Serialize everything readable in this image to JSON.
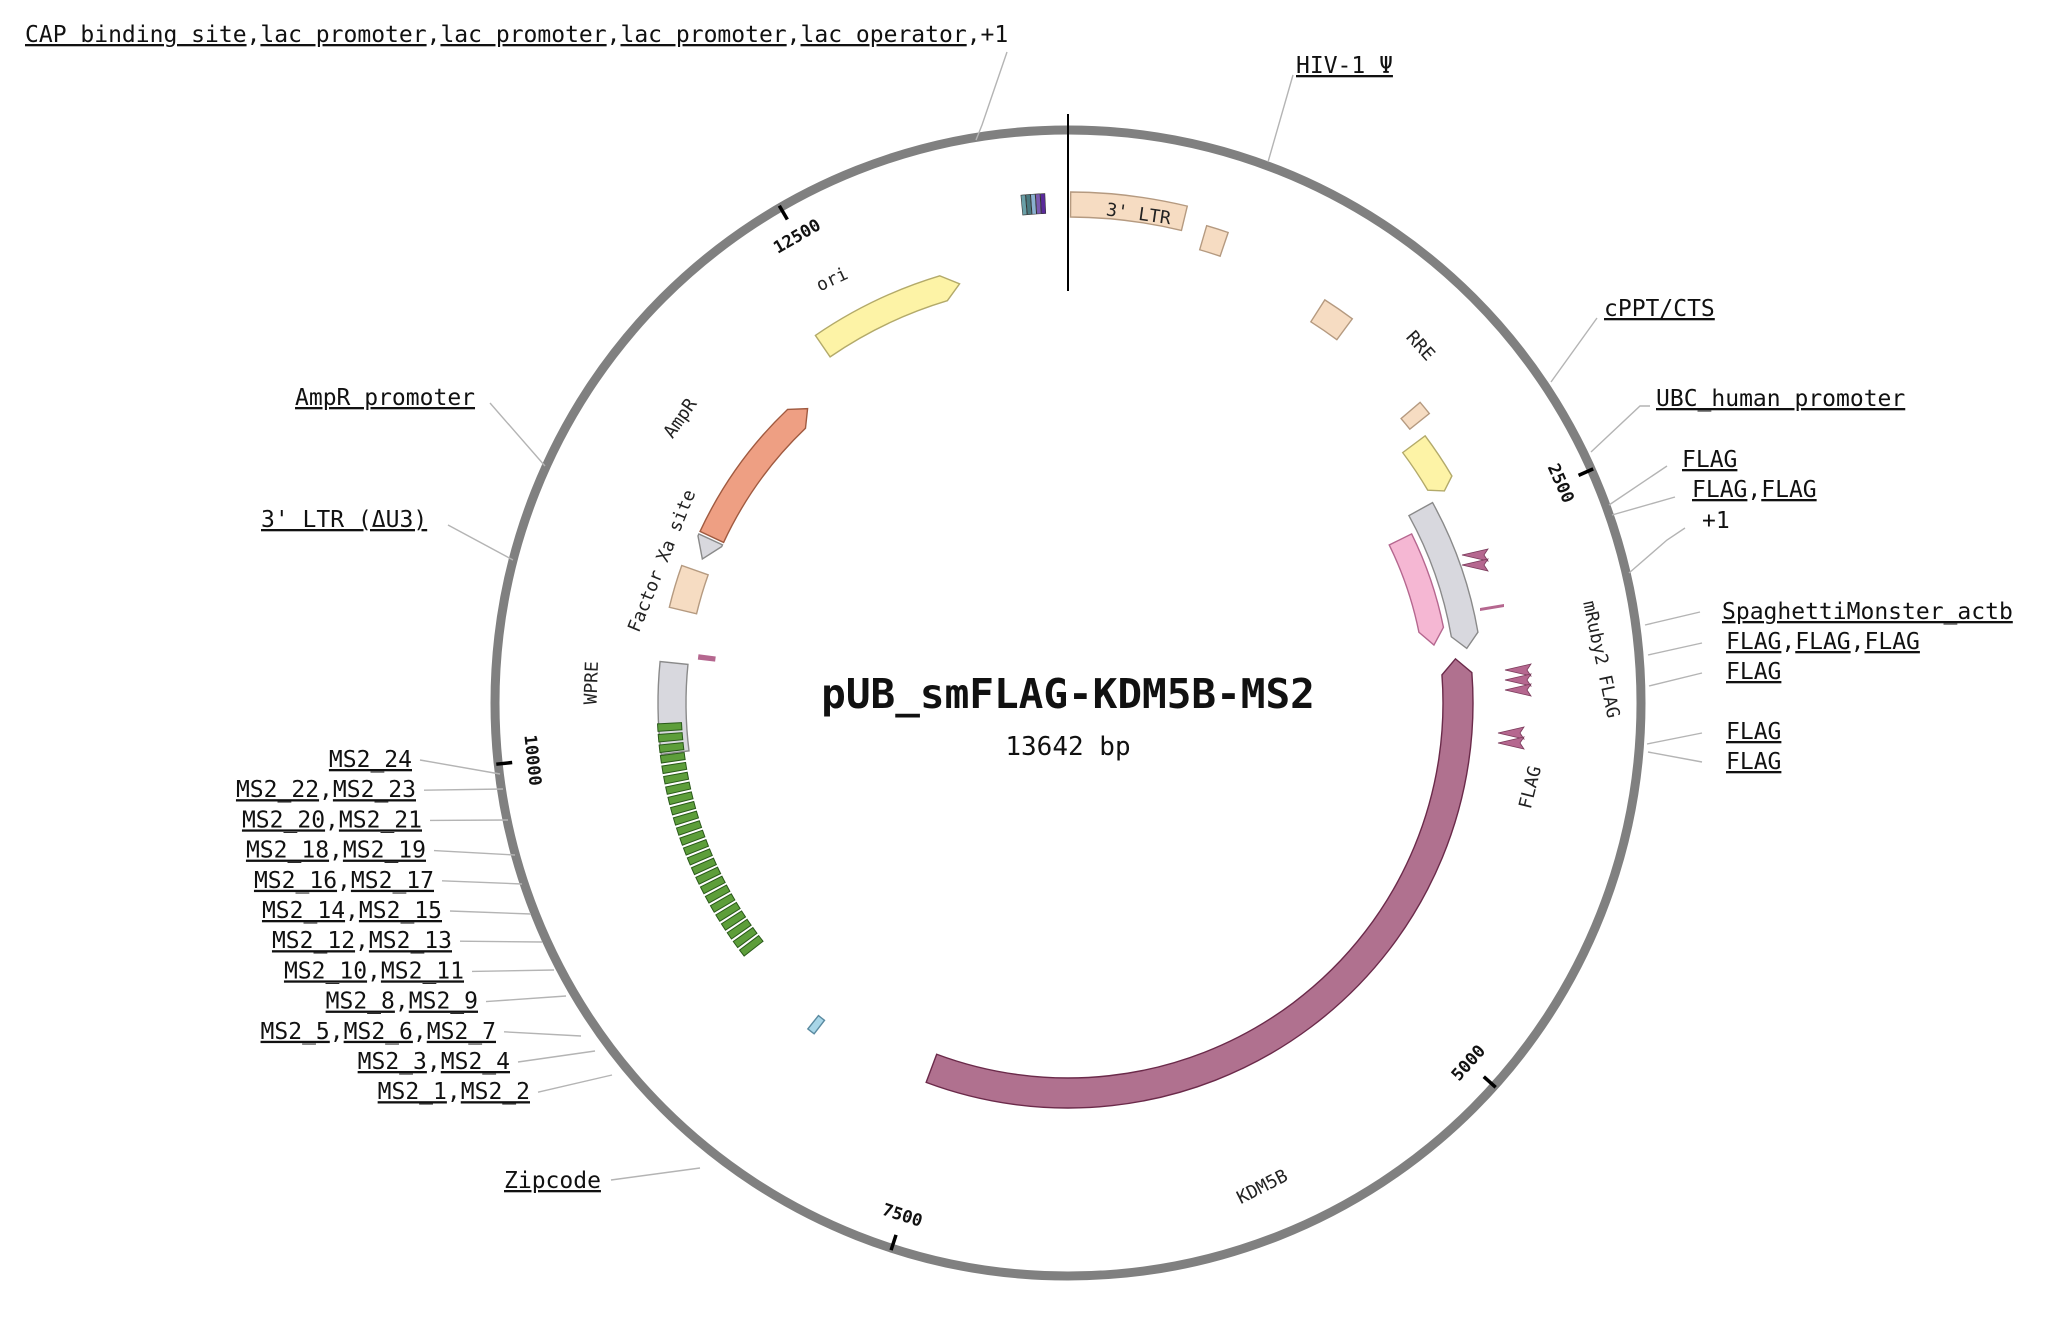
{
  "plasmid": {
    "name": "pUB_smFLAG-KDM5B-MS2",
    "length_label": "13642 bp",
    "length_bp": 13642
  },
  "ticks": [
    "2500",
    "5000",
    "7500",
    "10000",
    "12500"
  ],
  "tick_positions_bp": [
    2500,
    5000,
    7500,
    10000,
    12500
  ],
  "colors": {
    "backbone": "#808080",
    "ltr": "#f6dcc2",
    "promoter": "#fdf3a6",
    "wpre": "#d8d8de",
    "ampr": "#ee9f83",
    "kdm5b": "#b0718f",
    "mruby2": "#f5b7d3",
    "flag_tag": "#b5678f",
    "ms2": "#5d9e3a",
    "zipcode": "#a8d6e8"
  },
  "features": {
    "ltr3": "3' LTR",
    "rre": "RRE",
    "mruby2": "mRuby2 FLAG",
    "flag": "FLAG",
    "kdm5b": "KDM5B",
    "ori": "ori",
    "ampr": "AmpR",
    "factor_xa": "Factor Xa site",
    "wpre": "WPRE"
  },
  "callouts": {
    "top_left": [
      "CAP binding site",
      "lac promoter",
      "lac promoter",
      "lac promoter",
      "lac operator"
    ],
    "top_left_more": "+1",
    "hiv": "HIV-1 Ψ",
    "cppt": "cPPT/CTS",
    "ubc": "UBC_human promoter",
    "flag_a": "FLAG",
    "flag_b": [
      "FLAG",
      "FLAG"
    ],
    "plus1": "+1",
    "spaghetti": "SpaghettiMonster_actb",
    "flag_c": [
      "FLAG",
      "FLAG",
      "FLAG"
    ],
    "flag_d": "FLAG",
    "flag_e": "FLAG",
    "flag_f": "FLAG",
    "ampr_promoter": "AmpR promoter",
    "ltr_du3": "3' LTR (ΔU3)",
    "zipcode": "Zipcode",
    "ms2": [
      [
        "MS2_24"
      ],
      [
        "MS2_22",
        "MS2_23"
      ],
      [
        "MS2_20",
        "MS2_21"
      ],
      [
        "MS2_18",
        "MS2_19"
      ],
      [
        "MS2_16",
        "MS2_17"
      ],
      [
        "MS2_14",
        "MS2_15"
      ],
      [
        "MS2_12",
        "MS2_13"
      ],
      [
        "MS2_10",
        "MS2_11"
      ],
      [
        "MS2_8",
        "MS2_9"
      ],
      [
        "MS2_5",
        "MS2_6",
        "MS2_7"
      ],
      [
        "MS2_3",
        "MS2_4"
      ],
      [
        "MS2_1",
        "MS2_2"
      ]
    ]
  }
}
